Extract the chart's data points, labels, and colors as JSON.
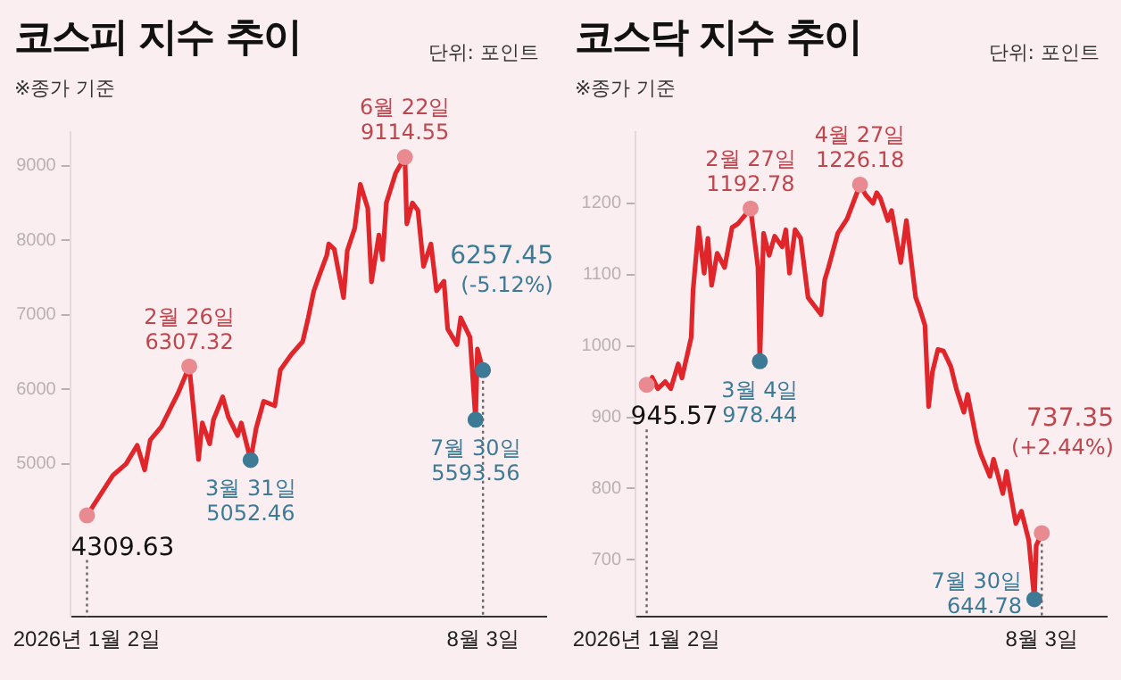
{
  "chart_data": [
    {
      "type": "line",
      "title": "코스피 지수 추이",
      "subtitle": "※종가 기준",
      "ylabel": "단위: 포인트",
      "xlim": [
        "2025-12-24",
        "2026-09-06"
      ],
      "xticks": [
        {
          "value": "2026-01-02",
          "label": "2026년 1월 2일"
        },
        {
          "value": "2026-08-03",
          "label": "8월 3일"
        }
      ],
      "ylim": [
        2950,
        9450
      ],
      "yticks": [
        5000,
        6000,
        7000,
        8000,
        9000
      ],
      "series": [
        {
          "color": "#e0262b",
          "x": [
            "2026-01-02",
            "2026-01-16",
            "2026-01-23",
            "2026-01-29",
            "2026-02-02",
            "2026-02-05",
            "2026-02-11",
            "2026-02-16",
            "2026-02-20",
            "2026-02-26",
            "2026-03-03",
            "2026-03-05",
            "2026-03-09",
            "2026-03-11",
            "2026-03-16",
            "2026-03-19",
            "2026-03-24",
            "2026-03-26",
            "2026-03-31",
            "2026-04-03",
            "2026-04-07",
            "2026-04-13",
            "2026-04-16",
            "2026-04-22",
            "2026-04-28",
            "2026-05-01",
            "2026-05-04",
            "2026-05-07",
            "2026-05-11",
            "2026-05-12",
            "2026-05-15",
            "2026-05-20",
            "2026-05-22",
            "2026-05-26",
            "2026-05-29",
            "2026-06-02",
            "2026-06-04",
            "2026-06-08",
            "2026-06-10",
            "2026-06-12",
            "2026-06-17",
            "2026-06-22",
            "2026-06-23",
            "2026-06-26",
            "2026-06-29",
            "2026-07-02",
            "2026-07-06",
            "2026-07-09",
            "2026-07-13",
            "2026-07-15",
            "2026-07-20",
            "2026-07-22",
            "2026-07-27",
            "2026-07-30",
            "2026-07-31",
            "2026-08-03"
          ],
          "values": [
            4309.63,
            4850,
            5000,
            5250,
            4920,
            5320,
            5500,
            5750,
            5950,
            6307.32,
            5060,
            5550,
            5270,
            5590,
            5900,
            5630,
            5380,
            5550,
            5052.46,
            5480,
            5840,
            5780,
            6260,
            6470,
            6640,
            6960,
            7320,
            7530,
            7800,
            7950,
            7880,
            7230,
            7860,
            8160,
            8750,
            8430,
            7440,
            8070,
            7740,
            8500,
            8900,
            9114.55,
            8220,
            8500,
            8400,
            7650,
            7950,
            7320,
            7450,
            6810,
            6600,
            6960,
            6700,
            5593.56,
            6540,
            6257.45
          ]
        },
        {
          "type": "scatter",
          "marker": "circle",
          "x": [
            "2026-01-02",
            "2026-02-26",
            "2026-03-31",
            "2026-06-22",
            "2026-07-30",
            "2026-08-03"
          ],
          "values": [
            4309.63,
            6307.32,
            5052.46,
            9114.55,
            5593.56,
            6257.45
          ],
          "colors": [
            "#e88a90",
            "#e88a90",
            "#3d7a96",
            "#e88a90",
            "#3d7a96",
            "#3d7a96"
          ]
        }
      ],
      "ref_lines": [
        {
          "axis": "x",
          "value": "2026-01-02",
          "line_style": "dotted",
          "color": "#666666"
        },
        {
          "axis": "x",
          "value": "2026-08-03",
          "line_style": "dotted",
          "color": "#666666"
        }
      ],
      "annotations": [
        {
          "text": "4309.63",
          "x": "2026-01-02",
          "y": 4309.63
        },
        {
          "text": "2월 26일\n6307.32",
          "x": "2026-02-26",
          "y": 6307.32
        },
        {
          "text": "3월 31일\n5052.46",
          "x": "2026-03-31",
          "y": 5052.46
        },
        {
          "text": "6월 22일\n9114.55",
          "x": "2026-06-22",
          "y": 9114.55
        },
        {
          "text": "7월 30일\n5593.56",
          "x": "2026-07-30",
          "y": 5593.56
        },
        {
          "text": "6257.45\n(-5.12%)",
          "x": "2026-08-03",
          "y": 6257.45
        }
      ]
    },
    {
      "type": "line",
      "title": "코스닥 지수 추이",
      "subtitle": "※종가 기준",
      "ylabel": "단위: 포인트",
      "xlim": [
        "2025-12-27",
        "2026-09-07"
      ],
      "xticks": [
        {
          "value": "2026-01-02",
          "label": "2026년 1월 2일"
        },
        {
          "value": "2026-08-03",
          "label": "8월 3일"
        }
      ],
      "ylim": [
        620,
        1300
      ],
      "yticks": [
        700,
        800,
        900,
        1000,
        1100,
        1200
      ],
      "series": [
        {
          "color": "#e0262b",
          "x": [
            "2026-01-02",
            "2026-01-05",
            "2026-01-08",
            "2026-01-12",
            "2026-01-15",
            "2026-01-19",
            "2026-01-21",
            "2026-01-26",
            "2026-01-27",
            "2026-01-30",
            "2026-02-02",
            "2026-02-04",
            "2026-02-06",
            "2026-02-09",
            "2026-02-13",
            "2026-02-17",
            "2026-02-20",
            "2026-02-27",
            "2026-03-03",
            "2026-03-04",
            "2026-03-06",
            "2026-03-09",
            "2026-03-12",
            "2026-03-16",
            "2026-03-18",
            "2026-03-20",
            "2026-03-23",
            "2026-03-26",
            "2026-03-30",
            "2026-04-01",
            "2026-04-06",
            "2026-04-08",
            "2026-04-10",
            "2026-04-15",
            "2026-04-20",
            "2026-04-27",
            "2026-04-30",
            "2026-05-04",
            "2026-05-06",
            "2026-05-08",
            "2026-05-12",
            "2026-05-14",
            "2026-05-19",
            "2026-05-22",
            "2026-05-27",
            "2026-05-29",
            "2026-06-01",
            "2026-06-03",
            "2026-06-05",
            "2026-06-08",
            "2026-06-11",
            "2026-06-15",
            "2026-06-18",
            "2026-06-22",
            "2026-06-24",
            "2026-06-29",
            "2026-07-01",
            "2026-07-06",
            "2026-07-08",
            "2026-07-13",
            "2026-07-15",
            "2026-07-20",
            "2026-07-23",
            "2026-07-27",
            "2026-07-30",
            "2026-07-31",
            "2026-08-03"
          ],
          "values": [
            945.57,
            956,
            940,
            950,
            940,
            975,
            955,
            1012,
            1078,
            1166,
            1102,
            1151,
            1085,
            1130,
            1110,
            1166,
            1171,
            1192.78,
            1110,
            978.44,
            1158,
            1127,
            1154,
            1139,
            1163,
            1102,
            1163,
            1151,
            1068,
            1061,
            1044,
            1093,
            1110,
            1158,
            1178,
            1226.18,
            1212,
            1200,
            1215,
            1207,
            1176,
            1190,
            1117,
            1176,
            1068,
            1054,
            1029,
            915,
            963,
            995,
            993,
            971,
            939,
            907,
            932,
            866,
            849,
            817,
            841,
            793,
            824,
            751,
            768,
            727,
            644.78,
            720,
            737.35
          ]
        },
        {
          "type": "scatter",
          "marker": "circle",
          "x": [
            "2026-01-02",
            "2026-02-27",
            "2026-03-04",
            "2026-04-27",
            "2026-07-30",
            "2026-08-03"
          ],
          "values": [
            945.57,
            1192.78,
            978.44,
            1226.18,
            644.78,
            737.35
          ],
          "colors": [
            "#e88a90",
            "#e88a90",
            "#3d7a96",
            "#e88a90",
            "#3d7a96",
            "#e88a90"
          ]
        }
      ],
      "ref_lines": [
        {
          "axis": "x",
          "value": "2026-01-02",
          "line_style": "dotted",
          "color": "#666666"
        },
        {
          "axis": "x",
          "value": "2026-08-03",
          "line_style": "dotted",
          "color": "#666666"
        }
      ],
      "annotations": [
        {
          "text": "945.57",
          "x": "2026-01-02",
          "y": 945.57
        },
        {
          "text": "2월 27일\n1192.78",
          "x": "2026-02-27",
          "y": 1192.78
        },
        {
          "text": "3월 4일\n978.44",
          "x": "2026-03-04",
          "y": 978.44
        },
        {
          "text": "4월 27일\n1226.18",
          "x": "2026-04-27",
          "y": 1226.18
        },
        {
          "text": "7월 30일\n644.78",
          "x": "2026-07-30",
          "y": 644.78
        },
        {
          "text": "737.35\n(+2.44%)",
          "x": "2026-08-03",
          "y": 737.35
        }
      ]
    }
  ]
}
